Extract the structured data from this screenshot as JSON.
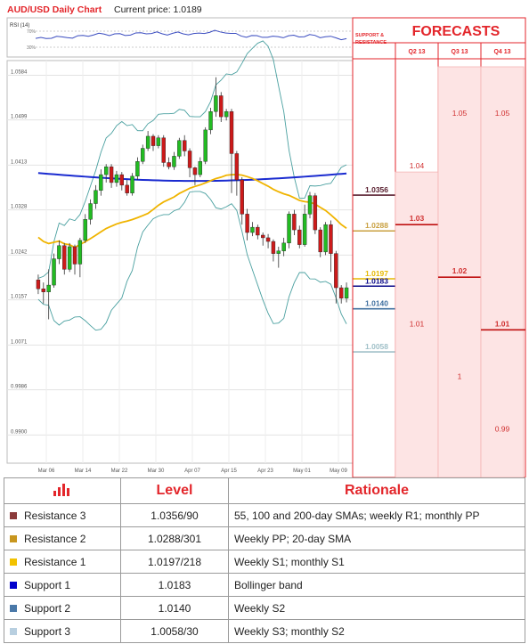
{
  "header": {
    "title": "AUD/USD Daily Chart",
    "price_label": "Current price: 1.0189"
  },
  "rsi": {
    "label": "RSI (14)",
    "levels": [
      "70%",
      "30%"
    ]
  },
  "forecast_panel": {
    "support_title": "SUPPORT & RESISTANCE",
    "title": "FORECASTS",
    "columns": [
      "Q2 13",
      "Q3 13",
      "Q4 13"
    ]
  },
  "chart_data": {
    "type": "candlestick",
    "ylim": [
      0.986,
      1.06
    ],
    "yticks": [
      "1.0584",
      "1.0499",
      "1.0413",
      "1.0328",
      "1.0242",
      "1.0157",
      "1.0071",
      "0.9986",
      "0.9900"
    ],
    "xticks": [
      "Mar 06",
      "Mar 14",
      "Mar 22",
      "Mar 30",
      "Apr 07",
      "Apr 15",
      "Apr 23",
      "May 01",
      "May 09"
    ],
    "candles": [
      [
        1.0195,
        1.0178,
        1.0205,
        1.0168
      ],
      [
        1.0178,
        1.0172,
        1.019,
        1.015
      ],
      [
        1.0172,
        1.0185,
        1.0215,
        1.012
      ],
      [
        1.0185,
        1.0235,
        1.0245,
        1.018
      ],
      [
        1.0235,
        1.026,
        1.027,
        1.0225
      ],
      [
        1.026,
        1.0215,
        1.0265,
        1.0205
      ],
      [
        1.0215,
        1.0258,
        1.0265,
        1.021
      ],
      [
        1.0258,
        1.0225,
        1.0262,
        1.0205
      ],
      [
        1.0225,
        1.027,
        1.0275,
        1.02
      ],
      [
        1.027,
        1.031,
        1.032,
        1.0265
      ],
      [
        1.031,
        1.034,
        1.0348,
        1.03
      ],
      [
        1.034,
        1.0365,
        1.0375,
        1.033
      ],
      [
        1.0365,
        1.0395,
        1.0405,
        1.0355
      ],
      [
        1.0395,
        1.041,
        1.0415,
        1.038
      ],
      [
        1.041,
        1.038,
        1.0415,
        1.037
      ],
      [
        1.038,
        1.0395,
        1.0402,
        1.0372
      ],
      [
        1.0395,
        1.0375,
        1.04,
        1.0365
      ],
      [
        1.0375,
        1.036,
        1.0385,
        1.0355
      ],
      [
        1.036,
        1.0392,
        1.0398,
        1.0355
      ],
      [
        1.0392,
        1.042,
        1.0428,
        1.0385
      ],
      [
        1.042,
        1.0445,
        1.0452,
        1.0415
      ],
      [
        1.0445,
        1.0468,
        1.0478,
        1.044
      ],
      [
        1.0468,
        1.045,
        1.0472,
        1.044
      ],
      [
        1.045,
        1.0465,
        1.047,
        1.0445
      ],
      [
        1.0465,
        1.0418,
        1.047,
        1.041
      ],
      [
        1.0418,
        1.041,
        1.0428,
        1.0405
      ],
      [
        1.041,
        1.043,
        1.0438,
        1.0404
      ],
      [
        1.043,
        1.046,
        1.0465,
        1.0425
      ],
      [
        1.046,
        1.044,
        1.047,
        1.043
      ],
      [
        1.044,
        1.0408,
        1.0445,
        1.039
      ],
      [
        1.0408,
        1.0395,
        1.041,
        1.0375
      ],
      [
        1.0395,
        1.042,
        1.0428,
        1.039
      ],
      [
        1.042,
        1.048,
        1.0485,
        1.0415
      ],
      [
        1.048,
        1.0515,
        1.0522,
        1.0472
      ],
      [
        1.0515,
        1.0545,
        1.058,
        1.0505
      ],
      [
        1.0545,
        1.0505,
        1.0552,
        1.0495
      ],
      [
        1.0505,
        1.0515,
        1.052,
        1.0498
      ],
      [
        1.0515,
        1.0435,
        1.052,
        1.036
      ],
      [
        1.0435,
        1.0385,
        1.044,
        1.0355
      ],
      [
        1.0385,
        1.032,
        1.039,
        1.03
      ],
      [
        1.032,
        1.0285,
        1.033,
        1.027
      ],
      [
        1.0285,
        1.0295,
        1.0305,
        1.0278
      ],
      [
        1.0295,
        1.028,
        1.03,
        1.0272
      ],
      [
        1.028,
        1.0275,
        1.0285,
        1.026
      ],
      [
        1.0275,
        1.0268,
        1.0282,
        1.0255
      ],
      [
        1.0268,
        1.0245,
        1.0272,
        1.023
      ],
      [
        1.0245,
        1.025,
        1.0258,
        1.0218
      ],
      [
        1.025,
        1.0265,
        1.0275,
        1.024
      ],
      [
        1.0265,
        1.032,
        1.0325,
        1.0255
      ],
      [
        1.032,
        1.029,
        1.0328,
        1.028
      ],
      [
        1.029,
        1.0262,
        1.0298,
        1.0255
      ],
      [
        1.0262,
        1.032,
        1.0338,
        1.0258
      ],
      [
        1.032,
        1.0355,
        1.0362,
        1.0312
      ],
      [
        1.0355,
        1.029,
        1.036,
        1.0282
      ],
      [
        1.029,
        1.0248,
        1.0295,
        1.0238
      ],
      [
        1.0248,
        1.03,
        1.0305,
        1.0242
      ],
      [
        1.03,
        1.0245,
        1.0308,
        1.021
      ],
      [
        1.0245,
        1.018,
        1.025,
        1.015
      ],
      [
        1.018,
        1.016,
        1.0185,
        1.015
      ],
      [
        1.016,
        1.018,
        1.019,
        1.0152
      ]
    ],
    "levels": [
      {
        "label": "1.0356",
        "value": 1.0356,
        "color": "#5a2030"
      },
      {
        "label": "1.0288",
        "value": 1.0288,
        "color": "#c9a040"
      },
      {
        "label": "1.0197",
        "value": 1.0197,
        "color": "#e6b800"
      },
      {
        "label": "1.0183",
        "value": 1.0183,
        "color": "#0a0a8a"
      },
      {
        "label": "1.0140",
        "value": 1.014,
        "color": "#4070a0"
      },
      {
        "label": "1.0058",
        "value": 1.0058,
        "color": "#a0c0c8"
      }
    ],
    "forecasts": {
      "q2": [
        {
          "label": "1.04",
          "value": 1.04
        },
        {
          "label": "1.03",
          "value": 1.03
        },
        {
          "label": "1.01",
          "value": 1.01
        }
      ],
      "q3": [
        {
          "label": "1.02",
          "value": 1.02
        },
        {
          "label": "1",
          "value": 1.0
        }
      ],
      "q4": [
        {
          "label": "1.05",
          "value": 1.05
        },
        {
          "label": "1.01",
          "value": 1.01
        },
        {
          "label": "0.99",
          "value": 0.99
        }
      ],
      "q3_top": {
        "label": "1.05",
        "value": 1.05
      }
    }
  },
  "table": {
    "headers": [
      "Level",
      "Rationale"
    ],
    "rows": [
      {
        "name": "Resistance 3",
        "level": "1.0356/90",
        "rationale": "55, 100 and 200-day SMAs; weekly R1; monthly PP",
        "color": "#8b3a3a"
      },
      {
        "name": "Resistance 2",
        "level": "1.0288/301",
        "rationale": "Weekly PP; 20-day SMA",
        "color": "#c8961e"
      },
      {
        "name": "Resistance 1",
        "level": "1.0197/218",
        "rationale": "Weekly S1; monthly S1",
        "color": "#f2c200"
      },
      {
        "name": "Support 1",
        "level": "1.0183",
        "rationale": "Bollinger band",
        "color": "#0000cc"
      },
      {
        "name": "Support 2",
        "level": "1.0140",
        "rationale": "Weekly S2",
        "color": "#4a78a8"
      },
      {
        "name": "Support 3",
        "level": "1.0058/30",
        "rationale": "Weekly S3; monthly S2",
        "color": "#b8cfe0"
      }
    ]
  }
}
